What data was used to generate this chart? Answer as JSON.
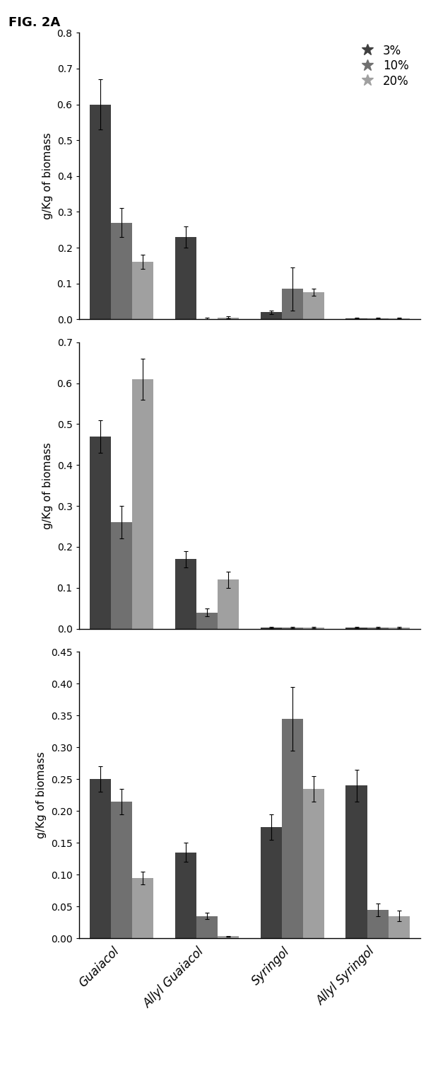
{
  "categories": [
    "Guaiacol",
    "Allyl Guaiacol",
    "Syringol",
    "Allyl Syringol"
  ],
  "legend_labels": [
    "3%",
    "10%",
    "20%"
  ],
  "bar_colors": [
    "#404040",
    "#707070",
    "#a0a0a0"
  ],
  "subplot1": {
    "values": [
      [
        0.6,
        0.27,
        0.16
      ],
      [
        0.23,
        0.0,
        0.005
      ],
      [
        0.02,
        0.085,
        0.075
      ],
      [
        0.003,
        0.003,
        0.003
      ]
    ],
    "errors": [
      [
        0.07,
        0.04,
        0.02
      ],
      [
        0.03,
        0.005,
        0.003
      ],
      [
        0.005,
        0.06,
        0.01
      ],
      [
        0.001,
        0.001,
        0.001
      ]
    ],
    "ylim": [
      0,
      0.8
    ],
    "yticks": [
      0,
      0.1,
      0.2,
      0.3,
      0.4,
      0.5,
      0.6,
      0.7,
      0.8
    ]
  },
  "subplot2": {
    "values": [
      [
        0.47,
        0.26,
        0.61
      ],
      [
        0.17,
        0.04,
        0.12
      ],
      [
        0.003,
        0.003,
        0.003
      ],
      [
        0.003,
        0.003,
        0.003
      ]
    ],
    "errors": [
      [
        0.04,
        0.04,
        0.05
      ],
      [
        0.02,
        0.01,
        0.02
      ],
      [
        0.001,
        0.001,
        0.001
      ],
      [
        0.001,
        0.001,
        0.001
      ]
    ],
    "ylim": [
      0,
      0.7
    ],
    "yticks": [
      0,
      0.1,
      0.2,
      0.3,
      0.4,
      0.5,
      0.6,
      0.7
    ]
  },
  "subplot3": {
    "values": [
      [
        0.25,
        0.215,
        0.095
      ],
      [
        0.135,
        0.035,
        0.003
      ],
      [
        0.175,
        0.345,
        0.235
      ],
      [
        0.24,
        0.045,
        0.035
      ]
    ],
    "errors": [
      [
        0.02,
        0.02,
        0.01
      ],
      [
        0.015,
        0.005,
        0.001
      ],
      [
        0.02,
        0.05,
        0.02
      ],
      [
        0.025,
        0.01,
        0.008
      ]
    ],
    "ylim": [
      0,
      0.45
    ],
    "yticks": [
      0,
      0.05,
      0.1,
      0.15,
      0.2,
      0.25,
      0.3,
      0.35,
      0.4,
      0.45
    ]
  },
  "ylabel": "g/Kg of biomass",
  "figure_label": "FIG. 2A",
  "background_color": "#ffffff",
  "bar_width": 0.25,
  "fig_width": 6.2,
  "fig_height": 15.42
}
